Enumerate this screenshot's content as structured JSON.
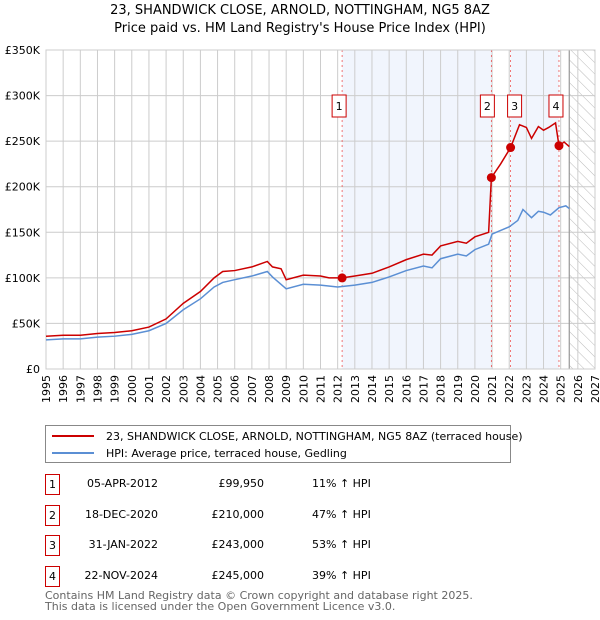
{
  "title": "23, SHANDWICK CLOSE, ARNOLD, NOTTINGHAM, NG5 8AZ",
  "subtitle": "Price paid vs. HM Land Registry's House Price Index (HPI)",
  "chart_data": {
    "type": "line",
    "title": "23, SHANDWICK CLOSE, ARNOLD, NOTTINGHAM, NG5 8AZ",
    "xlim": [
      1995,
      2027
    ],
    "ylim": [
      0,
      350000
    ],
    "x_ticks": [
      "1995",
      "1996",
      "1997",
      "1998",
      "1999",
      "2000",
      "2001",
      "2002",
      "2003",
      "2004",
      "2005",
      "2006",
      "2007",
      "2008",
      "2009",
      "2010",
      "2011",
      "2012",
      "2013",
      "2014",
      "2015",
      "2016",
      "2017",
      "2018",
      "2019",
      "2020",
      "2021",
      "2022",
      "2023",
      "2024",
      "2025",
      "2026",
      "2027"
    ],
    "y_ticks": [
      {
        "v": 0,
        "label": "£0"
      },
      {
        "v": 50000,
        "label": "£50K"
      },
      {
        "v": 100000,
        "label": "£100K"
      },
      {
        "v": 150000,
        "label": "£150K"
      },
      {
        "v": 200000,
        "label": "£200K"
      },
      {
        "v": 250000,
        "label": "£250K"
      },
      {
        "v": 300000,
        "label": "£300K"
      },
      {
        "v": 350000,
        "label": "£350K"
      }
    ],
    "grid": true,
    "series": [
      {
        "name": "23, SHANDWICK CLOSE, ARNOLD, NOTTINGHAM, NG5 8AZ (terraced house)",
        "color": "#cc0000",
        "x": [
          1995,
          1996,
          1997,
          1998,
          1999,
          2000,
          2001,
          2002,
          2003,
          2004,
          2004.8,
          2005.3,
          2006,
          2007,
          2007.9,
          2008.2,
          2008.7,
          2009,
          2010,
          2011,
          2011.5,
          2012.26,
          2013,
          2014,
          2015,
          2016,
          2017,
          2017.5,
          2018,
          2019,
          2019.5,
          2020,
          2020.8,
          2020.96,
          2021.5,
          2022.08,
          2022.6,
          2023,
          2023.3,
          2023.7,
          2024,
          2024.3,
          2024.7,
          2024.9,
          2025.2,
          2025.5
        ],
        "y": [
          36000,
          37000,
          37000,
          39000,
          40000,
          42000,
          46000,
          55000,
          72000,
          85000,
          100000,
          107000,
          108000,
          112000,
          118000,
          112000,
          110000,
          98000,
          103000,
          102000,
          100000,
          99950,
          102000,
          105000,
          112000,
          120000,
          126000,
          125000,
          135000,
          140000,
          138000,
          145000,
          150000,
          210000,
          225000,
          243000,
          268000,
          265000,
          253000,
          266000,
          262000,
          265000,
          270000,
          245000,
          249000,
          244000
        ]
      },
      {
        "name": "HPI: Average price, terraced house, Gedling",
        "color": "#5b8fd4",
        "x": [
          1995,
          1996,
          1997,
          1998,
          1999,
          2000,
          2001,
          2002,
          2003,
          2004,
          2004.8,
          2005.3,
          2006,
          2007,
          2007.9,
          2008.2,
          2009,
          2010,
          2011,
          2012,
          2013,
          2014,
          2015,
          2016,
          2017,
          2017.5,
          2018,
          2019,
          2019.5,
          2020,
          2020.8,
          2021,
          2021.5,
          2022,
          2022.5,
          2022.8,
          2023.3,
          2023.7,
          2024,
          2024.4,
          2024.9,
          2025.3,
          2025.5
        ],
        "y": [
          32000,
          33000,
          33000,
          35000,
          36000,
          38000,
          42000,
          50000,
          65000,
          77000,
          90000,
          95000,
          98000,
          102000,
          107000,
          101000,
          88000,
          93000,
          92000,
          90000,
          92000,
          95000,
          101000,
          108000,
          113000,
          111000,
          121000,
          126000,
          124000,
          131000,
          137000,
          148000,
          152000,
          156000,
          163000,
          175000,
          166000,
          173000,
          172000,
          169000,
          177000,
          179000,
          176000
        ]
      }
    ],
    "sales": [
      {
        "id": "1",
        "x": 2012.26,
        "y": 99950,
        "date": "05-APR-2012",
        "price": "£99,950",
        "hpi": "11% ↑ HPI"
      },
      {
        "id": "2",
        "x": 2020.96,
        "y": 210000,
        "date": "18-DEC-2020",
        "price": "£210,000",
        "hpi": "47% ↑ HPI"
      },
      {
        "id": "3",
        "x": 2022.08,
        "y": 243000,
        "date": "31-JAN-2022",
        "price": "£243,000",
        "hpi": "53% ↑ HPI"
      },
      {
        "id": "4",
        "x": 2024.9,
        "y": 245000,
        "date": "22-NOV-2024",
        "price": "£245,000",
        "hpi": "39% ↑ HPI"
      }
    ],
    "shaded_ranges": [
      [
        2012.26,
        2020.96
      ],
      [
        2022.08,
        2024.9
      ]
    ],
    "forecast_from": 2025.5,
    "legend": "bottom"
  },
  "legend": {
    "property": "23, SHANDWICK CLOSE, ARNOLD, NOTTINGHAM, NG5 8AZ (terraced house)",
    "hpi": "HPI: Average price, terraced house, Gedling"
  },
  "footer": {
    "line1": "Contains HM Land Registry data © Crown copyright and database right 2025.",
    "line2": "This data is licensed under the Open Government Licence v3.0."
  }
}
